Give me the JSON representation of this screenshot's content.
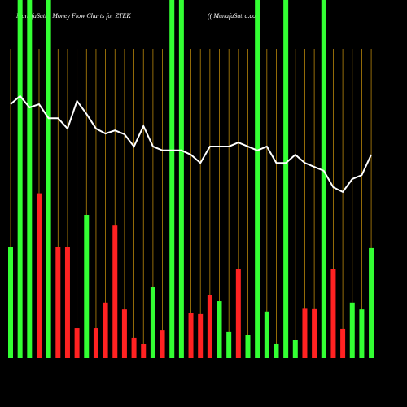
{
  "chart_data": {
    "type": "bar",
    "title": "MunafaSutra  Money Flow  Charts for ZTEK",
    "subtitle": "(( MunafaSutra.com",
    "ylim": [
      0,
      100
    ],
    "bar_colors": [
      "#33ff33",
      "#33ff33",
      "#33ff33",
      "#ff2222",
      "#33ff33",
      "#ff2222",
      "#ff2222",
      "#ff2222",
      "#33ff33",
      "#ff2222",
      "#ff2222",
      "#ff2222",
      "#ff2222",
      "#ff2222",
      "#ff2222",
      "#33ff33",
      "#ff2222",
      "#33ff33",
      "#33ff33",
      "#ff2222",
      "#ff2222",
      "#ff2222",
      "#33ff33",
      "#33ff33",
      "#ff2222",
      "#33ff33",
      "#33ff33",
      "#33ff33",
      "#33ff33",
      "#33ff33",
      "#33ff33",
      "#ff2222",
      "#ff2222",
      "#33ff33",
      "#ff2222",
      "#ff2222",
      "#33ff33",
      "#33ff33",
      "#33ff33"
    ],
    "values": [
      31,
      100,
      100,
      46,
      100,
      31,
      31,
      8.4,
      40,
      8.4,
      15.5,
      37,
      13.6,
      5.7,
      3.9,
      20,
      7.7,
      100,
      100,
      12.7,
      12.3,
      17.7,
      15.9,
      7.3,
      25,
      6.4,
      100,
      13,
      4.1,
      100,
      5,
      14,
      13.9,
      100,
      25,
      8.2,
      15.5,
      13.6,
      30.7
    ],
    "line_color": "#ffffff",
    "line_values": [
      70.9,
      73.2,
      70,
      70.9,
      67,
      67,
      64.1,
      71.8,
      68.2,
      64.1,
      62.7,
      63.6,
      62.5,
      59.1,
      64.8,
      59.1,
      58,
      58,
      58,
      56.8,
      54.5,
      59.1,
      59.1,
      59.1,
      60.2,
      59.1,
      58,
      59.1,
      54.5,
      54.5,
      56.8,
      54.5,
      53.4,
      52.3,
      47.7,
      46.4,
      50,
      51.1,
      56.8
    ],
    "grid_color": "#b8860b"
  }
}
